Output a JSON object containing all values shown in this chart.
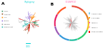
{
  "panel_A": {
    "label": "A",
    "legend_entries": [
      {
        "label": "Africa",
        "color": "#2e8b57"
      },
      {
        "label": "Americas",
        "color": "#8b4513"
      },
      {
        "label": "Asia",
        "color": "#ff8c00"
      },
      {
        "label": "Europe",
        "color": "#9370db"
      },
      {
        "label": "Oceania",
        "color": "#999999"
      },
      {
        "label": "Middle East",
        "color": "#20b2aa"
      }
    ],
    "highlight_color": "#ff0000",
    "branch_colors": [
      "#2e8b57",
      "#ff8c00",
      "#9370db",
      "#999999",
      "#20b2aa",
      "#8b4513",
      "#cc6666"
    ],
    "scalebar_color": "#00ced1",
    "scalebar_label": "0.001",
    "title_color": "#00ced1",
    "title": "Phylogeny"
  },
  "panel_B": {
    "label": "B",
    "title": "T10/AFR10",
    "title_color": "#ff69b4",
    "arc_segments": [
      {
        "color": "#e74c3c",
        "span": 45
      },
      {
        "color": "#e67e22",
        "span": 40
      },
      {
        "color": "#f1c40f",
        "span": 35
      },
      {
        "color": "#2ecc71",
        "span": 50
      },
      {
        "color": "#1abc9c",
        "span": 30
      },
      {
        "color": "#3498db",
        "span": 40
      },
      {
        "color": "#9b59b6",
        "span": 35
      },
      {
        "color": "#e91e63",
        "span": 45
      },
      {
        "color": "#ff5722",
        "span": 40
      }
    ],
    "legend_entries": [
      {
        "label": "AFR10 clade",
        "color": "#87ceeb"
      },
      {
        "label": "T10 clade",
        "color": "#ffa500"
      },
      {
        "label": "AFR10.2",
        "color": "#ff69b4"
      },
      {
        "label": "AFR10.1",
        "color": "#ffb6c1"
      },
      {
        "label": "Study isolates",
        "color": "#ff0000"
      }
    ],
    "inner_branch_color": "#c0c0c0",
    "highlight_color": "#ff0000"
  }
}
